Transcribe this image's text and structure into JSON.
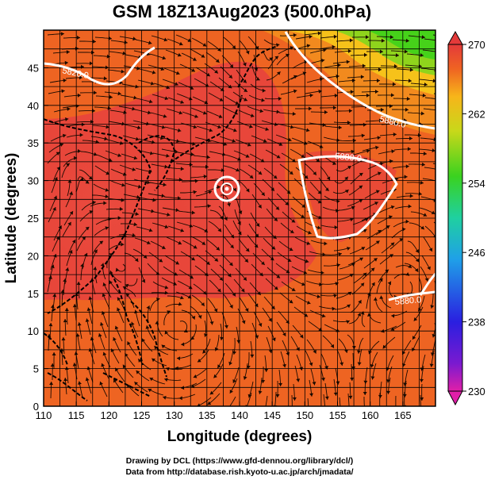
{
  "title": "GSM 18Z13Aug2023 (500.0hPa)",
  "xlabel": "Longitude (degrees)",
  "ylabel": "Latitude (degrees)",
  "x_ticks": [
    "110",
    "115",
    "120",
    "125",
    "130",
    "135",
    "140",
    "145",
    "150",
    "155",
    "160",
    "165"
  ],
  "y_ticks": [
    "0",
    "5",
    "10",
    "15",
    "20",
    "25",
    "30",
    "35",
    "40",
    "45"
  ],
  "colorbar_ticks": [
    "230",
    "238",
    "246",
    "254",
    "262",
    "270"
  ],
  "contour_labels": [
    "5820.0",
    "5880.0",
    "5880.0",
    "5880.0"
  ],
  "credit_line1": "Drawing by DCL (https://www.gfd-dennou.org/library/dcl/)",
  "credit_line2": "Data from http://database.rish.kyoto-u.ac.jp/arch/jmadata/",
  "colors": {
    "warm_red": "#e8453a",
    "orange": "#ee6a22",
    "yellow": "#f7c21a",
    "green": "#46d21a",
    "contour": "#ffffff",
    "coastline": "#000000"
  },
  "chart_data": {
    "type": "heatmap",
    "title": "GSM 18Z13Aug2023 (500.0hPa)",
    "xlabel": "Longitude (degrees)",
    "ylabel": "Latitude (degrees)",
    "xlim": [
      110,
      170
    ],
    "ylim": [
      0,
      50
    ],
    "colorbar": {
      "min": 230,
      "max": 270,
      "ticks": [
        230,
        238,
        246,
        254,
        262,
        270
      ]
    },
    "overlays": [
      "streamlines",
      "geopotential height contours",
      "coastlines",
      "grid"
    ],
    "grid": true
  }
}
